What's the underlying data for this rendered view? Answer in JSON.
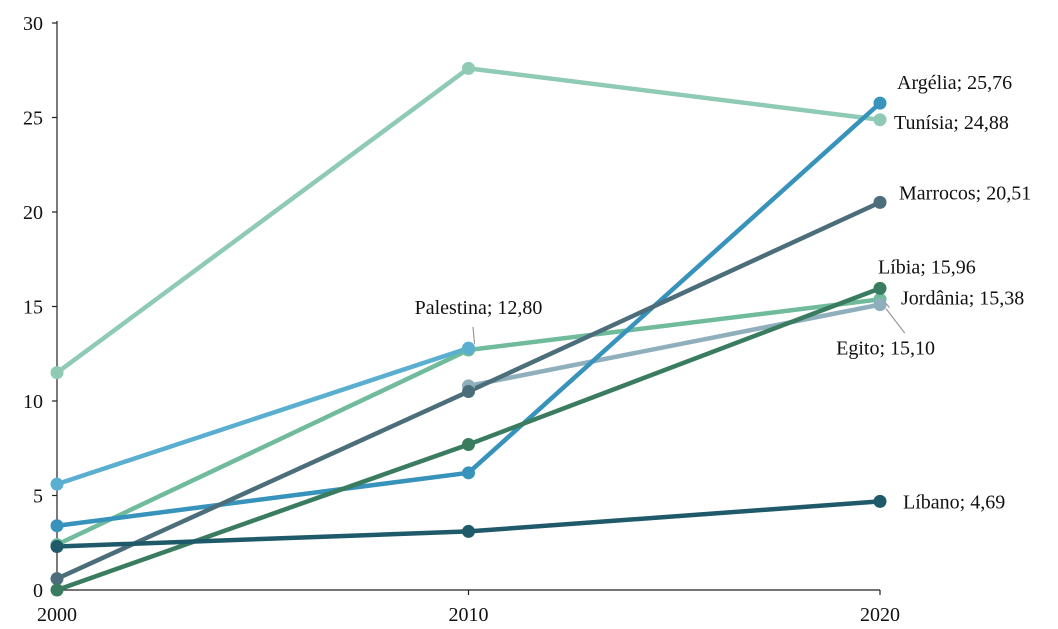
{
  "chart_data": {
    "type": "line",
    "x": [
      2000,
      2010,
      2020
    ],
    "ylim": [
      0,
      30
    ],
    "yticks": [
      0,
      5,
      10,
      15,
      20,
      25,
      30
    ],
    "grid": false,
    "legend": "none",
    "series": [
      {
        "name": "Tunísia",
        "values": [
          11.5,
          27.6,
          24.88
        ],
        "color": "#8ecab4"
      },
      {
        "name": "Jordânia",
        "values": [
          2.4,
          12.7,
          15.38
        ],
        "color": "#6fbb9c"
      },
      {
        "name": "Palestina",
        "values": [
          5.6,
          12.8,
          null
        ],
        "color": "#5aafd1"
      },
      {
        "name": "Egito",
        "values": [
          null,
          10.8,
          15.1
        ],
        "color": "#8fafbd"
      },
      {
        "name": "Argélia",
        "values": [
          3.4,
          6.2,
          25.76
        ],
        "color": "#3793bc"
      },
      {
        "name": "Marrocos",
        "values": [
          0.6,
          10.5,
          20.51
        ],
        "color": "#4c6e7a"
      },
      {
        "name": "Líbia",
        "values": [
          0.0,
          7.7,
          15.96
        ],
        "color": "#3a7c60"
      },
      {
        "name": "Líbano",
        "values": [
          2.3,
          3.1,
          4.69
        ],
        "color": "#1f5a6b"
      }
    ],
    "annotations": [
      {
        "series": "Argélia",
        "text": "Argélia; 25,76"
      },
      {
        "series": "Tunísia",
        "text": "Tunísia; 24,88"
      },
      {
        "series": "Marrocos",
        "text": "Marrocos; 20,51"
      },
      {
        "series": "Líbia",
        "text": "Líbia; 15,96"
      },
      {
        "series": "Jordânia",
        "text": "Jordânia; 15,38"
      },
      {
        "series": "Egito",
        "text": "Egito; 15,10"
      },
      {
        "series": "Palestina",
        "text": "Palestina; 12,80"
      },
      {
        "series": "Líbano",
        "text": "Líbano; 4,69"
      }
    ]
  }
}
